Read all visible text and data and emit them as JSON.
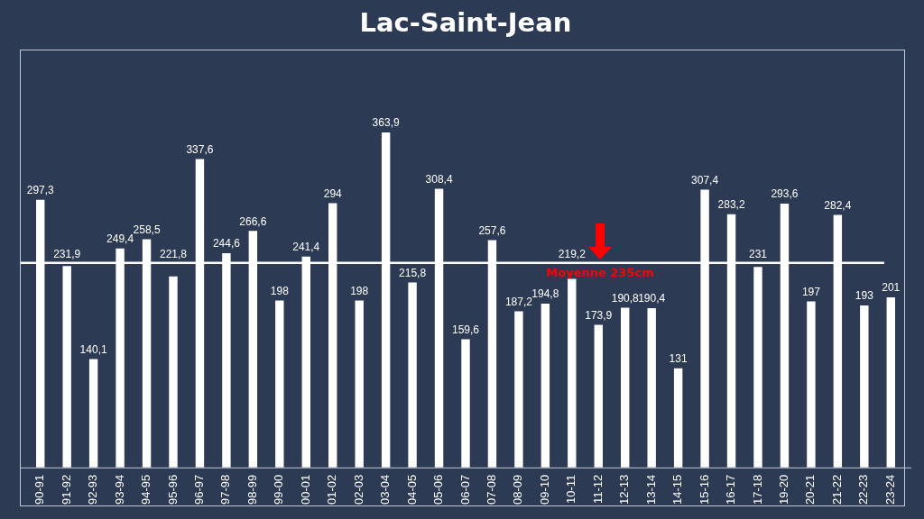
{
  "chart_data": {
    "type": "bar",
    "title": "Lac-Saint-Jean",
    "categories": [
      "90-91",
      "91-92",
      "92-93",
      "93-94",
      "94-95",
      "95-96",
      "96-97",
      "97-98",
      "98-99",
      "99-00",
      "00-01",
      "01-02",
      "02-03",
      "03-04",
      "04-05",
      "05-06",
      "06-07",
      "07-08",
      "08-09",
      "09-10",
      "10-11",
      "11-12",
      "12-13",
      "13-14",
      "14-15",
      "15-16",
      "16-17",
      "17-18",
      "19-20",
      "20-21",
      "21-22",
      "22-23",
      "23-24"
    ],
    "values": [
      297.3,
      231.9,
      140.1,
      249.4,
      258.5,
      221.8,
      337.6,
      244.6,
      266.6,
      198,
      241.4,
      294,
      198,
      363.9,
      215.8,
      308.4,
      159.6,
      257.6,
      187.2,
      194.8,
      219.2,
      173.9,
      190.8,
      190.4,
      131,
      307.4,
      283.2,
      231,
      293.6,
      197,
      282.4,
      193,
      201
    ],
    "value_labels": [
      "297,3",
      "231,9",
      "140,1",
      "249,4",
      "258,5",
      "221,8",
      "337,6",
      "244,6",
      "266,6",
      "198",
      "241,4",
      "294",
      "198",
      "363,9",
      "215,8",
      "308,4",
      "159,6",
      "257,6",
      "187,2",
      "194,8",
      "219,2",
      "173,9",
      "190,8",
      "190,4",
      "131",
      "307,4",
      "283,2",
      "231",
      "293,6",
      "197",
      "282,4",
      "193",
      "201"
    ],
    "color": "#ffffff",
    "ylim": [
      33,
      446
    ],
    "tick_labels": "x",
    "grid": false,
    "legend": false,
    "ref_lines": [
      {
        "axis": "y",
        "value": 235,
        "label": "Moyenne 235cm",
        "color": "#ffffff"
      }
    ]
  }
}
